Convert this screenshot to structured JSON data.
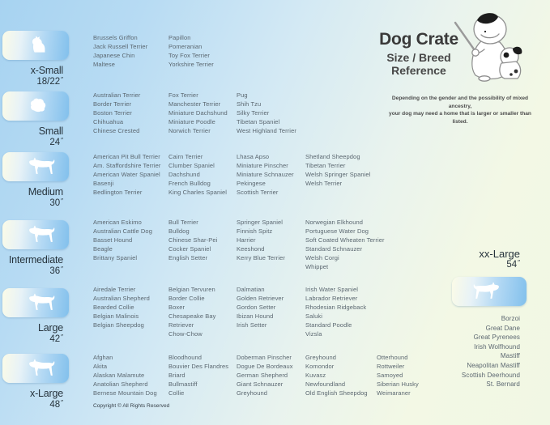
{
  "header": {
    "title": "Dog Crate",
    "subtitle_line1": "Size / Breed",
    "subtitle_line2": "Reference",
    "note_line1": "Depending on the gender and the possibility of mixed ancestry,",
    "note_line2": "your dog may need a home that is larger or smaller than listed.",
    "illustration": "cartoon-dog-with-pencil-and-puppy"
  },
  "colors": {
    "background_blue": "#a7d3f1",
    "background_green": "#f3f8e4",
    "badge_cream": "#fbfbe7",
    "badge_blue": "#82c0ec",
    "silhouette_white": "#ffffff",
    "heading_text": "#3a3a3a",
    "label_text": "#26333c",
    "breed_text": "#5b6770"
  },
  "sizes": [
    {
      "label": "x-Small",
      "dimension": "18/22",
      "unit": "″",
      "icon": "long-coat-chihuahua-silhouette",
      "breed_columns": [
        [
          "Brussels Griffon",
          "Jack Russell Terrier",
          "Japanese Chin",
          "Maltese"
        ],
        [
          "Papillon",
          "Pomeranian",
          "Toy Fox Terrier",
          "Yorkshire Terrier"
        ]
      ]
    },
    {
      "label": "Small",
      "dimension": "24",
      "unit": "″",
      "icon": "shih-tzu-silhouette",
      "breed_columns": [
        [
          "Australian Terrier",
          "Border Terrier",
          "Boston Terrier",
          "Chihuahua",
          "Chinese Crested"
        ],
        [
          "Fox Terrier",
          "Manchester Terrier",
          "Miniature Dachshund",
          "Miniature Poodle",
          "Norwich Terrier"
        ],
        [
          "Pug",
          "Shih Tzu",
          "Silky Terrier",
          "Tibetan Spaniel",
          "West Highland Terrier"
        ]
      ]
    },
    {
      "label": "Medium",
      "dimension": "30",
      "unit": "″",
      "icon": "west-highland-terrier-silhouette",
      "breed_columns": [
        [
          "American Pit Bull Terrier",
          "Am. Staffordshire Terrier",
          "American Water Spaniel",
          "Basenji",
          "Bedlington Terrier"
        ],
        [
          "Cairn Terrier",
          "Clumber Spaniel",
          "Dachshund",
          "French Bulldog",
          "King Charles Spaniel"
        ],
        [
          "Lhasa Apso",
          "Miniature Pinscher",
          "Miniature Schnauzer",
          "Pekingese",
          "Scottish Terrier"
        ],
        [
          "Shetland Sheepdog",
          "Tibetan Terrier",
          "Welsh Springer Spaniel",
          "Welsh Terrier"
        ]
      ]
    },
    {
      "label": "Intermediate",
      "dimension": "36",
      "unit": "″",
      "icon": "spaniel-silhouette",
      "breed_columns": [
        [
          "American Eskimo",
          "Australian Cattle Dog",
          "Basset Hound",
          "Beagle",
          "Brittany Spaniel"
        ],
        [
          "Bull Terrier",
          "Bulldog",
          "Chinese Shar-Pei",
          "Cocker Spaniel",
          "English Setter"
        ],
        [
          "Springer Spaniel",
          "Finnish Spitz",
          "Harrier",
          "Keeshond",
          "Kerry Blue Terrier"
        ],
        [
          "Norwegian Elkhound",
          "Portuguese Water Dog",
          "Soft Coated Wheaten Terrier",
          "Standard Schnauzer",
          "Welsh Corgi",
          "Whippet"
        ]
      ]
    },
    {
      "label": "Large",
      "dimension": "42",
      "unit": "″",
      "icon": "retriever-silhouette",
      "breed_columns": [
        [
          "Airedale Terrier",
          "Australian Shepherd",
          "Bearded Collie",
          "Belgian Malinois",
          "Belgian Sheepdog"
        ],
        [
          "Belgian Tervuren",
          "Border Collie",
          "Boxer",
          "Chesapeake Bay Retriever",
          "Chow-Chow"
        ],
        [
          "Dalmatian",
          "Golden Retriever",
          "Gordon Setter",
          "Ibizan Hound",
          "Irish Setter"
        ],
        [
          "Irish Water Spaniel",
          "Labrador Retriever",
          "Rhodesian Ridgeback",
          "Saluki",
          "Standard Poodle",
          "Vizsla"
        ]
      ]
    },
    {
      "label": "x-Large",
      "dimension": "48",
      "unit": "″",
      "icon": "akita-silhouette",
      "breed_columns": [
        [
          "Afghan",
          "Akita",
          "Alaskan Malamute",
          "Anatolian Shepherd",
          "Bernese Mountain Dog"
        ],
        [
          "Bloodhound",
          "Bouvier Des Flandres",
          "Briard",
          "Bullmastiff",
          "Collie"
        ],
        [
          "Doberman Pinscher",
          "Dogue De Bordeaux",
          "German Shepherd",
          "Giant Schnauzer",
          "Greyhound"
        ],
        [
          "Greyhound",
          "Komondor",
          "Kuvasz",
          "Newfoundland",
          "Old English Sheepdog"
        ],
        [
          "Otterhound",
          "Rottweiler",
          "Samoyed",
          "Siberian Husky",
          "Weimaraner"
        ]
      ]
    }
  ],
  "xx_large": {
    "label": "xx-Large",
    "dimension": "54",
    "unit": "″",
    "icon": "great-dane-silhouette",
    "breeds": [
      "Borzoi",
      "Great Dane",
      "Great Pyrenees",
      "Irish Wolfhound",
      "Mastiff",
      "Neapolitan Mastiff",
      "Scottish Deerhound",
      "St. Bernard"
    ]
  },
  "footer": {
    "copyright": "Copyright © All Rights Reserved"
  }
}
